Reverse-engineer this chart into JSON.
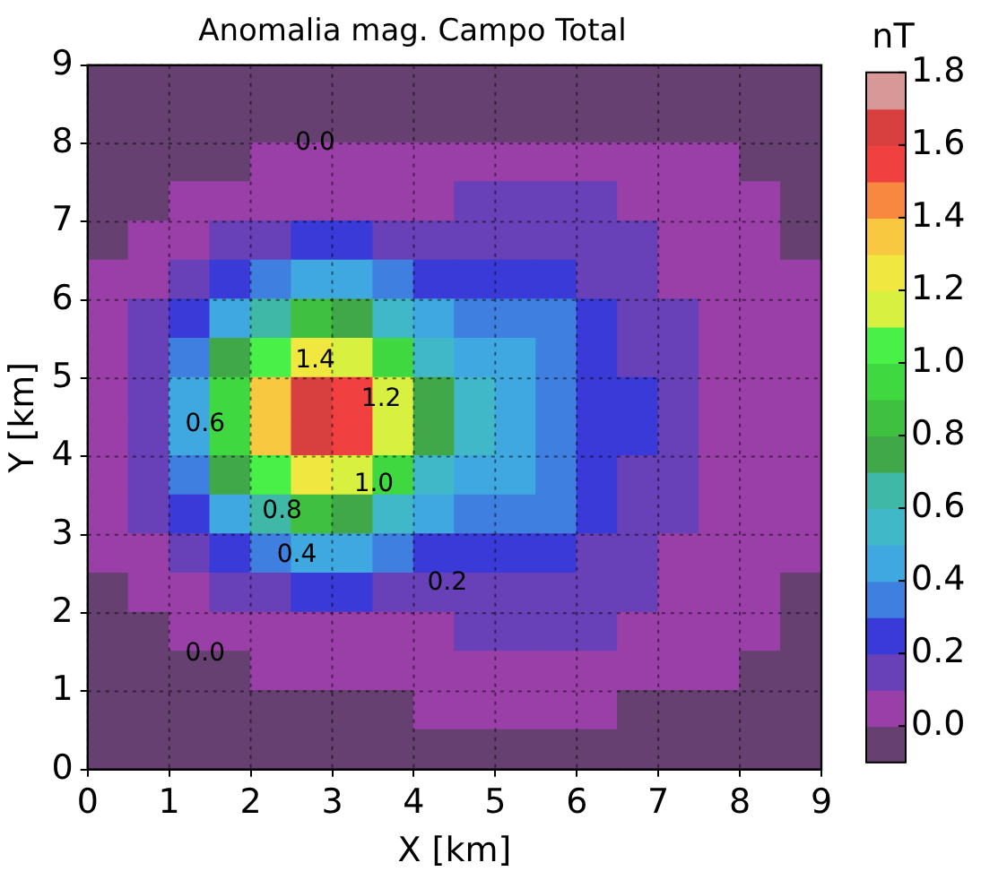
{
  "chart_data": {
    "type": "heatmap",
    "title": "Anomalia mag. Campo Total",
    "xlabel": "X [km]",
    "ylabel": "Y [km]",
    "clabel": "nT",
    "x": [
      0.25,
      0.75,
      1.25,
      1.75,
      2.25,
      2.75,
      3.25,
      3.75,
      4.25,
      4.75,
      5.25,
      5.75,
      6.25,
      6.75,
      7.25,
      7.75,
      8.25,
      8.75
    ],
    "y": [
      8.75,
      8.25,
      7.75,
      7.25,
      6.75,
      6.25,
      5.75,
      5.25,
      4.75,
      4.25,
      3.75,
      3.25,
      2.75,
      2.25,
      1.75,
      1.25,
      0.75,
      0.25
    ],
    "xlim": [
      0,
      9
    ],
    "ylim": [
      0,
      9
    ],
    "xticks": [
      0,
      1,
      2,
      3,
      4,
      5,
      6,
      7,
      8,
      9
    ],
    "yticks": [
      0,
      1,
      2,
      3,
      4,
      5,
      6,
      7,
      8,
      9
    ],
    "grid": true,
    "clim": [
      -0.1,
      1.8
    ],
    "cticks": [
      {
        "value": 0,
        "label": "0.0"
      },
      {
        "value": 0.2,
        "label": "0.2"
      },
      {
        "value": 0.4,
        "label": "0.4"
      },
      {
        "value": 0.6,
        "label": "0.6"
      },
      {
        "value": 0.8,
        "label": "0.8"
      },
      {
        "value": 1,
        "label": "1.0"
      },
      {
        "value": 1.2,
        "label": "1.2"
      },
      {
        "value": 1.4,
        "label": "1.4"
      },
      {
        "value": 1.6,
        "label": "1.6"
      },
      {
        "value": 1.8,
        "label": "1.8"
      }
    ],
    "colors": [
      "#654070",
      "#9b3fa8",
      "#6840b8",
      "#3a3ad8",
      "#3f7fe0",
      "#40a8e0",
      "#40b8c8",
      "#40b8a8",
      "#40a848",
      "#40c040",
      "#40d840",
      "#48f048",
      "#d8f040",
      "#f0e840",
      "#f8c840",
      "#f88840",
      "#f04040",
      "#d84040",
      "#d89898"
    ],
    "cells": [
      [
        -0.09,
        -0.08,
        -0.07,
        -0.06,
        -0.05,
        -0.05,
        -0.05,
        -0.05,
        -0.05,
        -0.05,
        -0.05,
        -0.05,
        -0.05,
        -0.05,
        -0.06,
        -0.07,
        -0.08,
        -0.09
      ],
      [
        -0.08,
        -0.06,
        -0.04,
        -0.03,
        -0.02,
        -0.01,
        -0.01,
        -0.01,
        -0.01,
        -0.01,
        -0.01,
        -0.01,
        -0.01,
        -0.01,
        -0.02,
        -0.03,
        -0.05,
        -0.07
      ],
      [
        -0.06,
        -0.04,
        -0.02,
        -0.01,
        0.02,
        0.04,
        0.04,
        0.04,
        0.05,
        0.06,
        0.08,
        0.08,
        0.07,
        0.06,
        0.04,
        0.01,
        -0.01,
        -0.03
      ],
      [
        -0.03,
        -0.01,
        0.04,
        0.07,
        0.08,
        0.09,
        0.09,
        0.08,
        0.08,
        0.1,
        0.12,
        0.12,
        0.1,
        0.09,
        0.07,
        0.04,
        0.01,
        -0.02
      ],
      [
        -0.01,
        0.04,
        0.08,
        0.14,
        0.18,
        0.21,
        0.2,
        0.16,
        0.16,
        0.17,
        0.18,
        0.18,
        0.14,
        0.11,
        0.08,
        0.05,
        0.02,
        -0.01
      ],
      [
        0.03,
        0.07,
        0.15,
        0.28,
        0.38,
        0.44,
        0.41,
        0.33,
        0.29,
        0.27,
        0.27,
        0.24,
        0.18,
        0.14,
        0.09,
        0.06,
        0.03,
        0.0
      ],
      [
        0.05,
        0.1,
        0.25,
        0.48,
        0.7,
        0.84,
        0.78,
        0.56,
        0.43,
        0.37,
        0.35,
        0.3,
        0.22,
        0.17,
        0.11,
        0.07,
        0.04,
        0.01
      ],
      [
        0.06,
        0.15,
        0.36,
        0.74,
        1.09,
        1.28,
        1.19,
        0.9,
        0.58,
        0.46,
        0.41,
        0.35,
        0.26,
        0.19,
        0.12,
        0.08,
        0.04,
        0.01
      ],
      [
        0.07,
        0.18,
        0.42,
        0.92,
        1.4,
        1.69,
        1.55,
        1.11,
        0.71,
        0.52,
        0.45,
        0.37,
        0.27,
        0.2,
        0.13,
        0.08,
        0.05,
        0.01
      ],
      [
        0.07,
        0.18,
        0.42,
        0.92,
        1.4,
        1.69,
        1.55,
        1.11,
        0.71,
        0.52,
        0.45,
        0.37,
        0.27,
        0.2,
        0.13,
        0.08,
        0.05,
        0.01
      ],
      [
        0.06,
        0.15,
        0.36,
        0.74,
        1.09,
        1.28,
        1.19,
        0.9,
        0.58,
        0.46,
        0.41,
        0.35,
        0.26,
        0.19,
        0.12,
        0.08,
        0.04,
        0.01
      ],
      [
        0.05,
        0.1,
        0.25,
        0.48,
        0.7,
        0.84,
        0.78,
        0.56,
        0.43,
        0.37,
        0.35,
        0.3,
        0.22,
        0.17,
        0.11,
        0.07,
        0.04,
        0.01
      ],
      [
        0.03,
        0.07,
        0.15,
        0.28,
        0.38,
        0.44,
        0.41,
        0.33,
        0.29,
        0.27,
        0.27,
        0.24,
        0.18,
        0.14,
        0.09,
        0.06,
        0.03,
        0.0
      ],
      [
        -0.01,
        0.04,
        0.08,
        0.14,
        0.18,
        0.21,
        0.2,
        0.16,
        0.16,
        0.17,
        0.18,
        0.18,
        0.14,
        0.11,
        0.08,
        0.05,
        0.02,
        -0.01
      ],
      [
        -0.03,
        -0.01,
        0.04,
        0.07,
        0.08,
        0.09,
        0.09,
        0.08,
        0.08,
        0.1,
        0.12,
        0.12,
        0.1,
        0.09,
        0.07,
        0.04,
        0.01,
        -0.02
      ],
      [
        -0.06,
        -0.04,
        -0.02,
        -0.01,
        0.02,
        0.04,
        0.04,
        0.04,
        0.05,
        0.06,
        0.08,
        0.08,
        0.07,
        0.06,
        0.04,
        0.01,
        -0.01,
        -0.03
      ],
      [
        -0.08,
        -0.06,
        -0.04,
        -0.03,
        -0.02,
        -0.01,
        -0.01,
        -0.01,
        0.01,
        0.01,
        0.01,
        0.01,
        0.01,
        -0.01,
        -0.02,
        -0.03,
        -0.05,
        -0.07
      ],
      [
        -0.09,
        -0.08,
        -0.07,
        -0.06,
        -0.05,
        -0.05,
        -0.05,
        -0.05,
        -0.05,
        -0.05,
        -0.05,
        -0.05,
        -0.05,
        -0.05,
        -0.06,
        -0.07,
        -0.08,
        -0.09
      ]
    ],
    "annotations": [
      "0.0",
      "1.4",
      "1.2",
      "0.6",
      "1.0",
      "0.8",
      "0.4",
      "0.2",
      "0.0"
    ]
  }
}
